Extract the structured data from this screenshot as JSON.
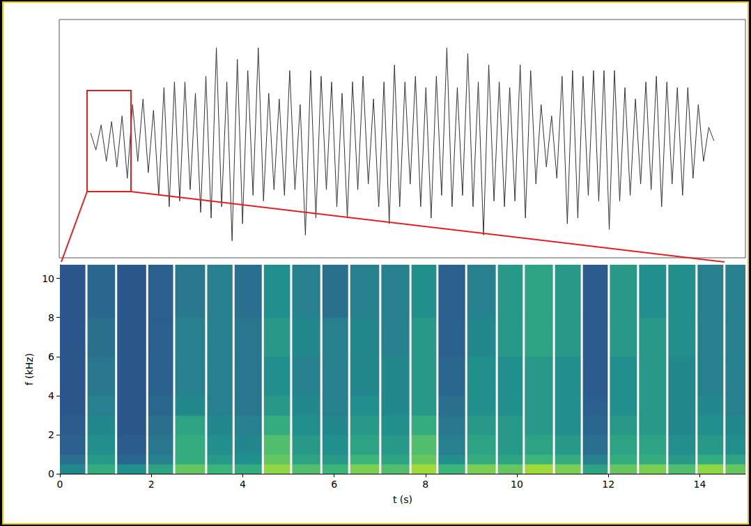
{
  "chart_data": [
    {
      "type": "line",
      "color": "#333333",
      "tick_labels": false,
      "x": [
        0,
        1,
        2,
        3,
        4,
        5,
        6,
        7,
        8,
        9,
        10,
        11,
        12,
        13,
        14,
        15,
        16,
        17,
        18,
        19,
        20,
        21,
        22,
        23,
        24,
        25,
        26,
        27,
        28,
        29,
        30,
        31,
        32,
        33,
        34,
        35,
        36,
        37,
        38,
        39,
        40,
        41,
        42,
        43,
        44,
        45,
        46,
        47,
        48,
        49,
        50,
        51,
        52,
        53,
        54,
        55,
        56,
        57,
        58,
        59,
        60,
        61,
        62,
        63,
        64,
        65,
        66,
        67,
        68,
        69,
        70,
        71,
        72,
        73,
        74,
        75,
        76,
        77,
        78,
        79,
        80,
        81,
        82,
        83,
        84,
        85,
        86,
        87,
        88,
        89,
        90,
        91,
        92,
        93,
        94,
        95,
        96,
        97,
        98,
        99,
        100,
        101,
        102,
        103,
        104,
        105,
        106,
        107,
        108,
        109,
        110,
        111,
        112,
        113,
        114,
        115,
        116,
        117,
        118,
        119
      ],
      "values": [
        0.05,
        -0.1,
        0.12,
        -0.2,
        0.15,
        -0.25,
        0.2,
        -0.35,
        0.3,
        -0.2,
        0.35,
        -0.3,
        0.25,
        -0.5,
        0.45,
        -0.6,
        0.5,
        -0.55,
        0.5,
        -0.45,
        0.4,
        -0.65,
        0.55,
        -0.7,
        0.8,
        -0.6,
        0.5,
        -0.9,
        0.7,
        -0.75,
        0.6,
        -0.5,
        0.8,
        -0.55,
        0.4,
        -0.45,
        0.35,
        -0.5,
        0.6,
        -0.45,
        0.3,
        -0.85,
        0.6,
        -0.7,
        0.55,
        -0.45,
        0.5,
        -0.6,
        0.4,
        -0.7,
        0.5,
        -0.45,
        0.55,
        -0.4,
        0.35,
        -0.6,
        0.5,
        -0.75,
        0.65,
        -0.6,
        0.5,
        -0.4,
        0.55,
        -0.6,
        0.45,
        -0.7,
        0.55,
        -0.5,
        0.8,
        -0.6,
        0.45,
        -0.5,
        0.75,
        -0.6,
        0.5,
        -0.85,
        0.65,
        -0.55,
        0.5,
        -0.6,
        0.45,
        -0.55,
        0.65,
        -0.7,
        0.6,
        -0.4,
        0.3,
        -0.25,
        0.2,
        -0.35,
        0.55,
        -0.75,
        0.6,
        -0.7,
        0.55,
        -0.5,
        0.6,
        -0.55,
        0.6,
        -0.8,
        0.6,
        -0.55,
        0.45,
        -0.5,
        0.35,
        -0.4,
        0.5,
        -0.45,
        0.55,
        -0.6,
        0.5,
        -0.4,
        0.45,
        -0.5,
        0.45,
        -0.35,
        0.3,
        -0.2,
        0.1,
        -0.02
      ],
      "xlim": [
        -6,
        125
      ],
      "ylim": [
        -1.05,
        1.05
      ]
    },
    {
      "type": "heatmap",
      "x_label": "t (s)",
      "y_label": "f (kHz)",
      "segments": [
        0,
        0.58,
        1.23,
        1.91,
        2.5,
        3.2,
        3.8,
        4.44,
        5.06,
        5.72,
        6.33,
        7.01,
        7.67,
        8.26,
        8.89,
        9.56,
        10.15,
        10.81,
        11.42,
        12.01,
        12.65,
        13.29,
        13.93,
        14.54,
        15
      ],
      "f_bins": [
        0,
        0.5,
        1,
        2,
        3,
        4,
        6,
        8,
        10.7
      ],
      "cells": [
        [
          0.35,
          0.2,
          0.1,
          0.08,
          0.05,
          0.05,
          0.05,
          0.05
        ],
        [
          0.55,
          0.45,
          0.4,
          0.35,
          0.3,
          0.25,
          0.2,
          0.15
        ],
        [
          0.4,
          0.15,
          0.08,
          0.05,
          0.05,
          0.05,
          0.05,
          0.05
        ],
        [
          0.5,
          0.3,
          0.25,
          0.2,
          0.15,
          0.12,
          0.1,
          0.1
        ],
        [
          0.7,
          0.55,
          0.55,
          0.5,
          0.35,
          0.3,
          0.3,
          0.25
        ],
        [
          0.6,
          0.45,
          0.4,
          0.35,
          0.3,
          0.3,
          0.3,
          0.3
        ],
        [
          0.55,
          0.4,
          0.35,
          0.3,
          0.25,
          0.25,
          0.25,
          0.2
        ],
        [
          0.8,
          0.7,
          0.65,
          0.55,
          0.45,
          0.4,
          0.45,
          0.4
        ],
        [
          0.65,
          0.5,
          0.45,
          0.4,
          0.35,
          0.3,
          0.35,
          0.3
        ],
        [
          0.6,
          0.45,
          0.4,
          0.35,
          0.3,
          0.3,
          0.3,
          0.2
        ],
        [
          0.75,
          0.6,
          0.5,
          0.45,
          0.4,
          0.35,
          0.35,
          0.3
        ],
        [
          0.65,
          0.5,
          0.45,
          0.4,
          0.35,
          0.35,
          0.3,
          0.3
        ],
        [
          0.85,
          0.7,
          0.65,
          0.55,
          0.45,
          0.45,
          0.45,
          0.4
        ],
        [
          0.6,
          0.4,
          0.3,
          0.25,
          0.2,
          0.15,
          0.12,
          0.1
        ],
        [
          0.75,
          0.55,
          0.5,
          0.45,
          0.4,
          0.4,
          0.35,
          0.3
        ],
        [
          0.7,
          0.5,
          0.45,
          0.45,
          0.4,
          0.4,
          0.45,
          0.45
        ],
        [
          0.85,
          0.6,
          0.5,
          0.45,
          0.45,
          0.45,
          0.5,
          0.5
        ],
        [
          0.75,
          0.55,
          0.45,
          0.4,
          0.4,
          0.4,
          0.45,
          0.45
        ],
        [
          0.5,
          0.3,
          0.2,
          0.15,
          0.1,
          0.08,
          0.08,
          0.08
        ],
        [
          0.7,
          0.55,
          0.5,
          0.45,
          0.4,
          0.4,
          0.45,
          0.45
        ],
        [
          0.75,
          0.55,
          0.5,
          0.45,
          0.45,
          0.45,
          0.45,
          0.4
        ],
        [
          0.65,
          0.45,
          0.4,
          0.35,
          0.35,
          0.35,
          0.4,
          0.4
        ],
        [
          0.8,
          0.55,
          0.45,
          0.4,
          0.35,
          0.3,
          0.3,
          0.3
        ],
        [
          0.7,
          0.5,
          0.4,
          0.35,
          0.3,
          0.3,
          0.3,
          0.3
        ]
      ],
      "zlim": [
        0,
        1
      ],
      "xlim": [
        0,
        15
      ],
      "ylim": [
        0,
        10.7
      ],
      "xticks": [
        0,
        2,
        4,
        6,
        8,
        10,
        12,
        14
      ],
      "yticks": [
        0,
        2,
        4,
        6,
        8,
        10
      ]
    }
  ]
}
